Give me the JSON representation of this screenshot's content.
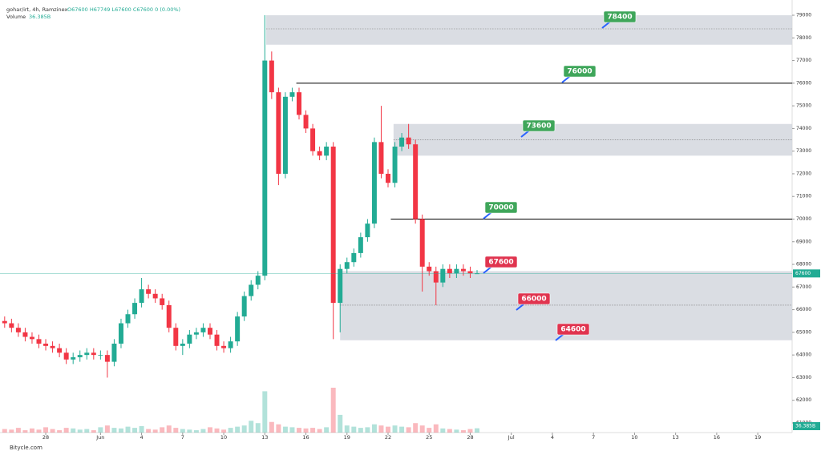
{
  "chart_data": {
    "type": "candlestick",
    "title": "gohar/irt, 4h, Ramzinex",
    "legend_text": "O67600 H67749 L67600 C67600 0 (0.00%)",
    "volume_title": "Volume",
    "volume_label": "36.385B",
    "watermark": "Bitycle.com",
    "up_color": "#22ab94",
    "down_color": "#f23645",
    "xlim": [
      -6.34,
      51.51
    ],
    "xticks": [
      {
        "value": -3,
        "label": "28"
      },
      {
        "value": 1,
        "label": "Jun"
      },
      4,
      7,
      10,
      13,
      16,
      19,
      22,
      25,
      28,
      {
        "value": 31,
        "label": "Jul"
      },
      {
        "value": 34,
        "label": "4"
      },
      {
        "value": 37,
        "label": "7"
      },
      {
        "value": 40,
        "label": "10"
      },
      {
        "value": 43,
        "label": "13"
      },
      {
        "value": 46,
        "label": "16"
      },
      {
        "value": 49,
        "label": "19"
      }
    ],
    "ylim": [
      60574,
      79390
    ],
    "yticks": [
      61000,
      62000,
      63000,
      64000,
      65000,
      66000,
      67000,
      68000,
      69000,
      70000,
      71000,
      72000,
      73000,
      74000,
      75000,
      76000,
      77000,
      78000,
      79000
    ],
    "candles": {
      "x": [
        -6,
        -5.5,
        -5,
        -4.5,
        -4,
        -3.5,
        -3,
        -2.5,
        -2,
        -1.5,
        -1,
        -0.5,
        0,
        0.5,
        1,
        1.5,
        2,
        2.5,
        3,
        3.5,
        4,
        4.5,
        5,
        5.5,
        6,
        6.5,
        7,
        7.5,
        8,
        8.5,
        9,
        9.5,
        10,
        10.5,
        11,
        11.5,
        12,
        12.5,
        13,
        13.5,
        14,
        14.5,
        15,
        15.5,
        16,
        16.5,
        17,
        17.5,
        18,
        18.5,
        19,
        19.5,
        20,
        20.5,
        21,
        21.5,
        22,
        22.5,
        23,
        23.5,
        24,
        24.5,
        25,
        25.5,
        26,
        26.5,
        27,
        27.5,
        28,
        28.5
      ],
      "open": [
        65500,
        65400,
        65200,
        65000,
        64800,
        64700,
        64500,
        64400,
        64300,
        64100,
        63800,
        63900,
        64000,
        64100,
        64000,
        64000,
        63700,
        64500,
        65400,
        65800,
        66300,
        66900,
        66700,
        66500,
        66200,
        65200,
        64400,
        64500,
        64900,
        65000,
        65200,
        64900,
        64400,
        64300,
        64600,
        65700,
        66600,
        67100,
        67500,
        77000,
        75600,
        72000,
        75400,
        75600,
        74600,
        74000,
        73000,
        72800,
        73200,
        66300,
        67800,
        68100,
        68500,
        69200,
        69800,
        73400,
        72000,
        71600,
        73200,
        73600,
        73300,
        70000,
        67900,
        67700,
        67200,
        67800,
        67600,
        67800,
        67700,
        67600
      ],
      "high": [
        65700,
        65600,
        65400,
        65200,
        65000,
        64900,
        64700,
        64600,
        64500,
        64300,
        64100,
        64200,
        64300,
        64300,
        64200,
        64200,
        64700,
        65600,
        66000,
        66500,
        67400,
        67100,
        66900,
        66700,
        66400,
        65400,
        64700,
        65100,
        65200,
        65400,
        65400,
        65100,
        64600,
        64800,
        65900,
        66800,
        67300,
        67700,
        79000,
        77400,
        75800,
        75600,
        75800,
        75800,
        74800,
        74200,
        73200,
        73400,
        73400,
        68000,
        68300,
        68700,
        69400,
        70000,
        73600,
        75000,
        72200,
        73400,
        73800,
        74200,
        73500,
        70200,
        68100,
        67900,
        68000,
        68000,
        68000,
        68000,
        67900,
        67749
      ],
      "low": [
        65200,
        65000,
        64800,
        64600,
        64500,
        64300,
        64200,
        64100,
        63900,
        63600,
        63600,
        63700,
        63800,
        63800,
        63800,
        63000,
        63500,
        64300,
        65200,
        65600,
        66100,
        66500,
        66300,
        66000,
        65000,
        64200,
        64000,
        64300,
        64700,
        64800,
        64700,
        64200,
        64100,
        64100,
        64400,
        65500,
        66400,
        66900,
        67300,
        75300,
        71500,
        71800,
        75200,
        74400,
        73800,
        72800,
        72600,
        72600,
        64700,
        65000,
        67600,
        67900,
        68300,
        69000,
        69600,
        71800,
        71400,
        71400,
        73000,
        73100,
        69800,
        66800,
        67500,
        66200,
        67000,
        67400,
        67400,
        67500,
        67400,
        67600
      ],
      "close": [
        65400,
        65200,
        65000,
        64800,
        64700,
        64500,
        64400,
        64300,
        64100,
        63800,
        63900,
        64000,
        64100,
        64000,
        64000,
        63700,
        64500,
        65400,
        65800,
        66300,
        66900,
        66700,
        66500,
        66200,
        65200,
        64400,
        64500,
        64900,
        65000,
        65200,
        64900,
        64400,
        64300,
        64600,
        65700,
        66600,
        67100,
        67500,
        77000,
        75600,
        72000,
        75400,
        75600,
        74600,
        74000,
        73000,
        72800,
        73200,
        66300,
        67800,
        68100,
        68500,
        69200,
        69800,
        73400,
        72000,
        71600,
        73200,
        73600,
        73300,
        70000,
        67900,
        67700,
        67200,
        67800,
        67600,
        67800,
        67700,
        67600,
        67600
      ],
      "volume": [
        30,
        25,
        40,
        20,
        35,
        25,
        45,
        30,
        20,
        40,
        35,
        25,
        30,
        20,
        45,
        60,
        40,
        35,
        50,
        40,
        55,
        30,
        25,
        45,
        60,
        40,
        30,
        25,
        20,
        30,
        45,
        35,
        25,
        40,
        50,
        60,
        100,
        80,
        350,
        90,
        70,
        50,
        45,
        40,
        35,
        40,
        30,
        45,
        380,
        150,
        60,
        50,
        40,
        45,
        70,
        60,
        50,
        60,
        50,
        45,
        80,
        60,
        40,
        70,
        35,
        30,
        25,
        20,
        30,
        36.385
      ]
    },
    "zones": [
      {
        "low": 77700,
        "high": 79000,
        "mid": 78400,
        "start": 13.1
      },
      {
        "low": 72800,
        "high": 74200,
        "mid": 73500,
        "start": 22.4
      },
      {
        "low": 64650,
        "high": 67700,
        "mid": 66200,
        "start": 18.5
      }
    ],
    "lines": [
      {
        "value": 76000,
        "start": 15.3
      },
      {
        "value": 70000,
        "start": 22.2
      }
    ],
    "levels": [
      {
        "value": 78400,
        "color": "#3fa65a"
      },
      {
        "value": 76000,
        "color": "#3fa65a"
      },
      {
        "value": 73600,
        "color": "#3fa65a"
      },
      {
        "value": 70000,
        "color": "#3fa65a"
      },
      {
        "value": 67600,
        "color": "#e0344f"
      },
      {
        "value": 66000,
        "color": "#e0344f"
      },
      {
        "value": 64600,
        "color": "#e0344f"
      }
    ]
  }
}
